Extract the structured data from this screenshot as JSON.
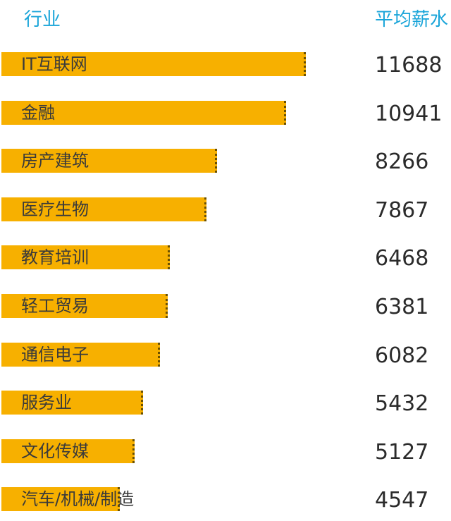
{
  "header": {
    "industry_label": "行业",
    "salary_label": "平均薪水"
  },
  "colors": {
    "bar": "#f7b000",
    "header_text": "#1aa5d9"
  },
  "chart_data": {
    "type": "bar",
    "orientation": "horizontal",
    "categories": [
      "IT互联网",
      "金融",
      "房产建筑",
      "医疗生物",
      "教育培训",
      "轻工贸易",
      "通信电子",
      "服务业",
      "文化传媒",
      "汽车/机械/制造"
    ],
    "values": [
      11688,
      10941,
      8266,
      7867,
      6468,
      6381,
      6082,
      5432,
      5127,
      4547
    ],
    "value_labels": [
      "11688",
      "10941",
      "8266",
      "7867",
      "6468",
      "6381",
      "6082",
      "5432",
      "5127",
      "4547"
    ],
    "xlim": [
      0,
      11688
    ],
    "grid": false,
    "legend": "none"
  }
}
